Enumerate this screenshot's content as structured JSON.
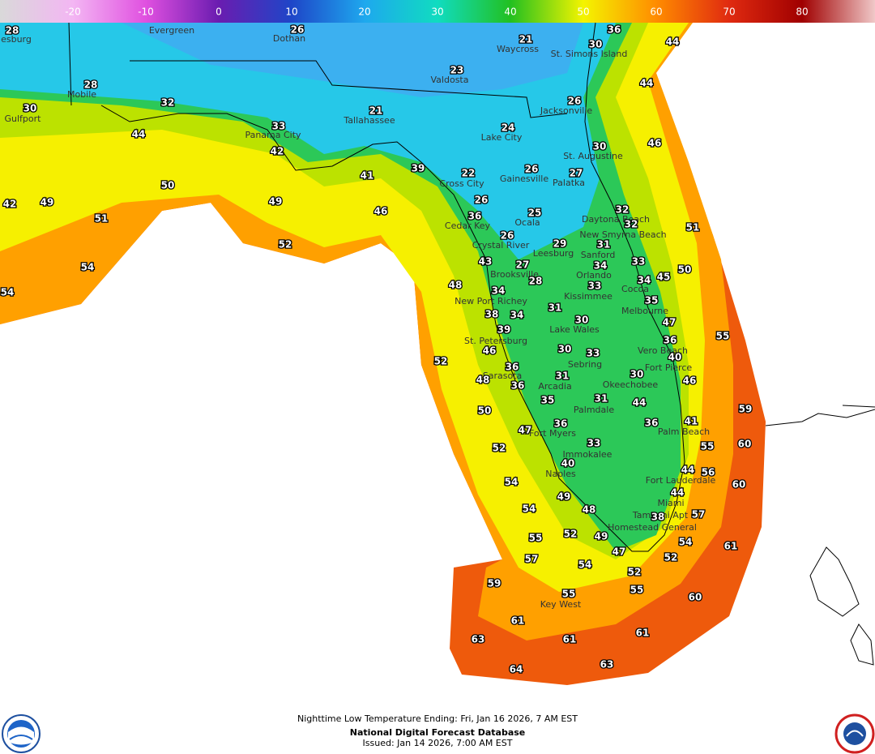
{
  "colorbar": {
    "range": [
      -30,
      90
    ],
    "ticks": [
      -20,
      -10,
      0,
      10,
      20,
      30,
      40,
      50,
      60,
      70,
      80
    ],
    "colors": [
      "#d9d9d9",
      "#f3b6f3",
      "#e050e0",
      "#6a1cb0",
      "#1e46c8",
      "#1ea8ee",
      "#10dcc0",
      "#22c020",
      "#f4f400",
      "#ff8c00",
      "#e02a10",
      "#a00000",
      "#f0c8c8"
    ]
  },
  "map": {
    "cities": [
      "esburg",
      "Evergreen",
      "Dothan",
      "Waycross",
      "St. Simons Island",
      "Valdosta",
      "Mobile",
      "Gulfport",
      "Tallahassee",
      "Jacksonville",
      "Panama City",
      "Lake City",
      "St. Augustine",
      "Cross City",
      "Gainesville",
      "Palatka",
      "Cedar Key",
      "Ocala",
      "Daytona Beach",
      "Crystal River",
      "New Smyrna Beach",
      "Leesburg",
      "Sanford",
      "Brooksville",
      "Orlando",
      "Cocoa",
      "Kissimmee",
      "New Port Richey",
      "Melbourne",
      "Lake Wales",
      "St. Petersburg",
      "Vero Beach",
      "Sebring",
      "Fort Pierce",
      "Sarasota",
      "Okeechobee",
      "Arcadia",
      "Palmdale",
      "Palm Beach",
      "Fort Myers",
      "Immokalee",
      "Naples",
      "Fort Lauderdale",
      "Miami",
      "Tamiami Apt",
      "Homestead General",
      "Key West"
    ],
    "temperatures": [
      28,
      26,
      21,
      36,
      30,
      44,
      28,
      23,
      44,
      30,
      32,
      21,
      26,
      33,
      24,
      44,
      30,
      46,
      42,
      39,
      41,
      22,
      26,
      27,
      50,
      49,
      49,
      26,
      42,
      46,
      25,
      32,
      36,
      51,
      51,
      32,
      26,
      29,
      31,
      52,
      43,
      33,
      54,
      27,
      34,
      50,
      28,
      34,
      45,
      33,
      48,
      34,
      54,
      35,
      31,
      38,
      34,
      47,
      30,
      39,
      55,
      36,
      46,
      30,
      33,
      40,
      36,
      52,
      31,
      30,
      46,
      48,
      36,
      35,
      31,
      44,
      59,
      50,
      36,
      41,
      36,
      47,
      60,
      52,
      55,
      33,
      40,
      44,
      56,
      60,
      54,
      44,
      49,
      54,
      48,
      57,
      38,
      55,
      52,
      49,
      54,
      57,
      47,
      61,
      52,
      54,
      59,
      52,
      55,
      55,
      60,
      61,
      61,
      63,
      61,
      63,
      64
    ]
  },
  "footer": {
    "line1": "Nighttime Low Temperature Ending: Fri, Jan 16 2026, 7 AM EST",
    "line2": "National Digital Forecast Database",
    "line3": "Issued: Jan 14 2026, 7:00 AM EST"
  }
}
